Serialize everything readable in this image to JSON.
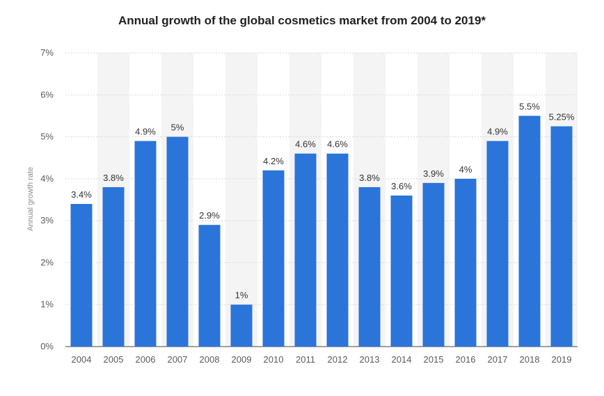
{
  "chart_data": {
    "type": "bar",
    "title": "Annual growth of the global cosmetics market from 2004 to 2019*",
    "xlabel": "",
    "ylabel": "Annual growth rate",
    "ylim": [
      0,
      7
    ],
    "yticks": [
      0,
      1,
      2,
      3,
      4,
      5,
      6,
      7
    ],
    "ytick_labels": [
      "0%",
      "1%",
      "2%",
      "3%",
      "4%",
      "5%",
      "6%",
      "7%"
    ],
    "categories": [
      "2004",
      "2005",
      "2006",
      "2007",
      "2008",
      "2009",
      "2010",
      "2011",
      "2012",
      "2013",
      "2014",
      "2015",
      "2016",
      "2017",
      "2018",
      "2019"
    ],
    "values": [
      3.4,
      3.8,
      4.9,
      5,
      2.9,
      1,
      4.2,
      4.6,
      4.6,
      3.8,
      3.6,
      3.9,
      4,
      4.9,
      5.5,
      5.25
    ],
    "value_labels": [
      "3.4%",
      "3.8%",
      "4.9%",
      "5%",
      "2.9%",
      "1%",
      "4.2%",
      "4.6%",
      "4.6%",
      "3.8%",
      "3.6%",
      "3.9%",
      "4%",
      "4.9%",
      "5.5%",
      "5.25%"
    ],
    "grid": true,
    "legend": "none",
    "colors": {
      "bar": "#2b74d9",
      "band": "#f4f4f4",
      "grid": "#d8d8d8",
      "tick_text": "#5a5a5a",
      "value_text": "#333333",
      "axis_label_text": "#8c8c8c"
    }
  }
}
